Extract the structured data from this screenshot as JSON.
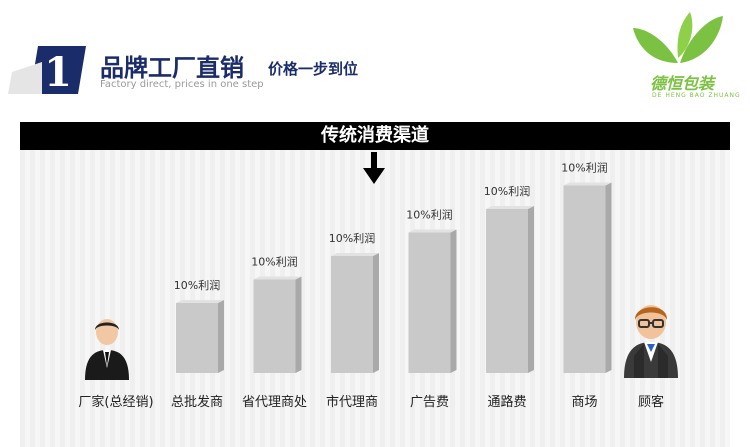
{
  "header": {
    "step_number": "1",
    "title": "品牌工厂直销",
    "subtitle": "价格一步到位",
    "subtitle_en": "Factory direct, prices in one step"
  },
  "logo": {
    "name": "德恒包装",
    "pinyin": "DE HENG BAO ZHUANG",
    "color": "#7cc242"
  },
  "banner": {
    "title": "传统消费渠道"
  },
  "chart_data": {
    "type": "bar",
    "categories": [
      "总批发商",
      "省代理商处",
      "市代理商",
      "广告费",
      "通路费",
      "商场"
    ],
    "values": [
      1,
      2,
      3,
      4,
      5,
      6
    ],
    "data_labels": [
      "10%利润",
      "10%利润",
      "10%利润",
      "10%利润",
      "10%利润",
      "10%利润"
    ],
    "start_label": "厂家(总经销)",
    "end_label": "顾客",
    "bar_color": "#c9c9c9"
  }
}
